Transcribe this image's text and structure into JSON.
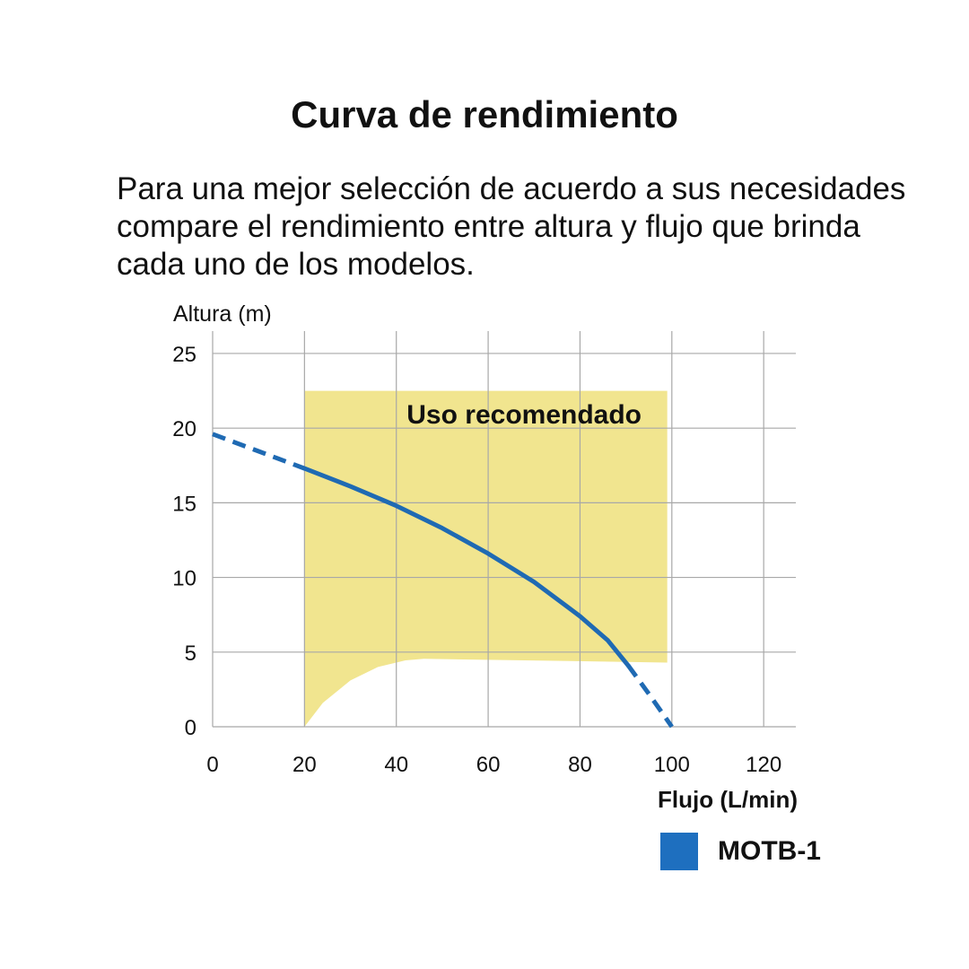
{
  "title": "Curva de rendimiento",
  "intro_lines": [
    "Para una mejor selección de acuerdo a sus necesidades",
    "compare el rendimiento entre altura y flujo que brinda",
    "cada uno de los modelos."
  ],
  "colors": {
    "series": "#1f6ab3",
    "series_legend": "#1e6fbf",
    "region": "#f1e58f",
    "grid": "#a8a8a8",
    "text": "#111111"
  },
  "chart_data": {
    "type": "line",
    "title": "",
    "xlabel": "Flujo (L/min)",
    "ylabel": "Altura (m)",
    "xlim": [
      0,
      127
    ],
    "ylim": [
      0,
      26.5
    ],
    "xticks": [
      0,
      20,
      40,
      60,
      80,
      100,
      120
    ],
    "yticks": [
      0,
      5,
      10,
      15,
      20,
      25
    ],
    "grid": true,
    "legend_position": "bottom-right",
    "series": [
      {
        "name": "MOTB-1",
        "solid": [
          {
            "x": 20,
            "y": 17.3
          },
          {
            "x": 30,
            "y": 16.1
          },
          {
            "x": 40,
            "y": 14.8
          },
          {
            "x": 50,
            "y": 13.3
          },
          {
            "x": 60,
            "y": 11.6
          },
          {
            "x": 70,
            "y": 9.7
          },
          {
            "x": 80,
            "y": 7.4
          },
          {
            "x": 86,
            "y": 5.8
          },
          {
            "x": 90.5,
            "y": 4.1
          }
        ],
        "dashed_start": [
          {
            "x": 0,
            "y": 19.6
          },
          {
            "x": 20,
            "y": 17.3
          }
        ],
        "dashed_end": [
          {
            "x": 90.5,
            "y": 4.1
          },
          {
            "x": 95,
            "y": 2.2
          },
          {
            "x": 100,
            "y": 0
          }
        ]
      }
    ],
    "recommended_region": {
      "label": "Uso recomendado",
      "x_from": 20,
      "x_to": 99,
      "top": 22.5,
      "bottom_boundary": [
        {
          "x": 20,
          "y": 0
        },
        {
          "x": 24,
          "y": 1.6
        },
        {
          "x": 30,
          "y": 3.1
        },
        {
          "x": 36,
          "y": 4.0
        },
        {
          "x": 42,
          "y": 4.45
        },
        {
          "x": 46,
          "y": 4.55
        },
        {
          "x": 99,
          "y": 4.3
        }
      ]
    }
  }
}
